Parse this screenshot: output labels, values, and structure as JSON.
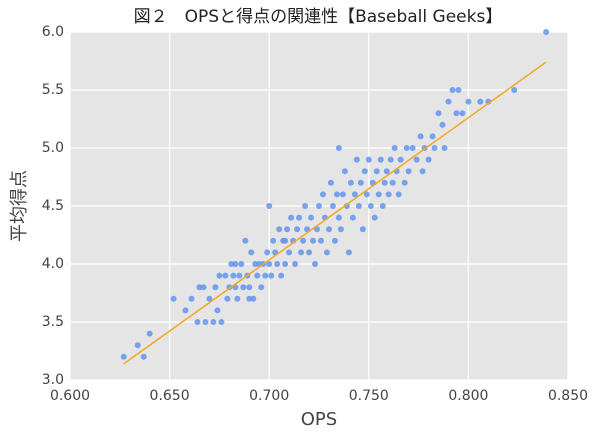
{
  "chart_data": {
    "type": "scatter",
    "title": "図２　OPSと得点の関連性【Baseball Geeks】",
    "x_label": "OPS",
    "y_label": "平均得点",
    "xlim": [
      0.6,
      0.85
    ],
    "xticks": [
      {
        "value": 0.6,
        "label": "0.600"
      },
      {
        "value": 0.65,
        "label": "0.650"
      },
      {
        "value": 0.7,
        "label": "0.700"
      },
      {
        "value": 0.75,
        "label": "0.750"
      },
      {
        "value": 0.8,
        "label": "0.800"
      },
      {
        "value": 0.85,
        "label": "0.850"
      }
    ],
    "ylim": [
      3,
      6
    ],
    "yticks": [
      {
        "value": 3,
        "label": "3.0"
      },
      {
        "value": 3.5,
        "label": "3.5"
      },
      {
        "value": 4,
        "label": "4.0"
      },
      {
        "value": 4.5,
        "label": "4.5"
      },
      {
        "value": 5,
        "label": "5.0"
      },
      {
        "value": 5.5,
        "label": "5.5"
      },
      {
        "value": 6,
        "label": "6.0"
      }
    ],
    "grid": true,
    "series": [
      {
        "type": "scatter",
        "color": "#6495ed",
        "x": [
          0.627,
          0.634,
          0.637,
          0.64,
          0.652,
          0.658,
          0.661,
          0.664,
          0.665,
          0.667,
          0.67,
          0.672,
          0.673,
          0.674,
          0.675,
          0.676,
          0.678,
          0.679,
          0.68,
          0.681,
          0.682,
          0.683,
          0.684,
          0.685,
          0.686,
          0.687,
          0.688,
          0.689,
          0.69,
          0.691,
          0.692,
          0.693,
          0.694,
          0.695,
          0.696,
          0.697,
          0.698,
          0.699,
          0.7,
          0.7,
          0.701,
          0.702,
          0.703,
          0.704,
          0.705,
          0.706,
          0.707,
          0.708,
          0.709,
          0.71,
          0.711,
          0.712,
          0.713,
          0.714,
          0.715,
          0.716,
          0.717,
          0.718,
          0.719,
          0.72,
          0.721,
          0.722,
          0.723,
          0.724,
          0.725,
          0.726,
          0.727,
          0.728,
          0.729,
          0.73,
          0.731,
          0.732,
          0.733,
          0.734,
          0.735,
          0.735,
          0.736,
          0.737,
          0.738,
          0.739,
          0.74,
          0.741,
          0.742,
          0.743,
          0.744,
          0.745,
          0.746,
          0.747,
          0.748,
          0.749,
          0.75,
          0.751,
          0.752,
          0.753,
          0.754,
          0.755,
          0.756,
          0.757,
          0.758,
          0.759,
          0.76,
          0.761,
          0.762,
          0.763,
          0.764,
          0.765,
          0.766,
          0.768,
          0.769,
          0.77,
          0.772,
          0.774,
          0.776,
          0.777,
          0.778,
          0.78,
          0.782,
          0.783,
          0.785,
          0.787,
          0.788,
          0.79,
          0.792,
          0.794,
          0.795,
          0.797,
          0.8,
          0.806,
          0.81,
          0.823,
          0.839,
          0.683,
          0.668,
          0.69,
          0.708
        ],
        "values": [
          3.2,
          3.3,
          3.2,
          3.4,
          3.7,
          3.6,
          3.7,
          3.5,
          3.8,
          3.8,
          3.7,
          3.5,
          3.8,
          3.6,
          3.9,
          3.5,
          3.9,
          3.7,
          3.8,
          4.0,
          3.9,
          3.8,
          3.7,
          3.9,
          4.0,
          3.8,
          4.2,
          3.9,
          3.8,
          4.1,
          3.7,
          4.0,
          3.9,
          4.0,
          3.8,
          4.0,
          3.9,
          4.1,
          4.5,
          4.0,
          3.9,
          4.2,
          4.1,
          4.0,
          4.3,
          3.9,
          4.2,
          4.0,
          4.3,
          4.1,
          4.4,
          4.2,
          4.0,
          4.3,
          4.4,
          4.1,
          4.2,
          4.5,
          4.3,
          4.1,
          4.4,
          4.2,
          4.0,
          4.3,
          4.5,
          4.2,
          4.6,
          4.4,
          4.1,
          4.3,
          4.7,
          4.5,
          4.2,
          4.6,
          5.0,
          4.4,
          4.3,
          4.6,
          4.8,
          4.5,
          4.1,
          4.7,
          4.4,
          4.6,
          4.9,
          4.5,
          4.7,
          4.3,
          4.8,
          4.6,
          4.9,
          4.5,
          4.7,
          4.4,
          4.8,
          4.6,
          4.9,
          4.5,
          4.7,
          4.8,
          4.6,
          4.9,
          4.7,
          5.0,
          4.8,
          4.6,
          4.9,
          4.7,
          5.0,
          4.8,
          5.0,
          4.9,
          5.1,
          4.8,
          5.0,
          4.9,
          5.1,
          5.0,
          5.3,
          5.2,
          5.0,
          5.4,
          5.5,
          5.3,
          5.5,
          5.3,
          5.4,
          5.4,
          5.4,
          5.5,
          6.0,
          4.0,
          3.5,
          3.7,
          4.2
        ]
      },
      {
        "type": "line",
        "color": "#f5a623",
        "x": [
          0.627,
          0.839
        ],
        "values": [
          3.14,
          5.74
        ]
      }
    ]
  }
}
